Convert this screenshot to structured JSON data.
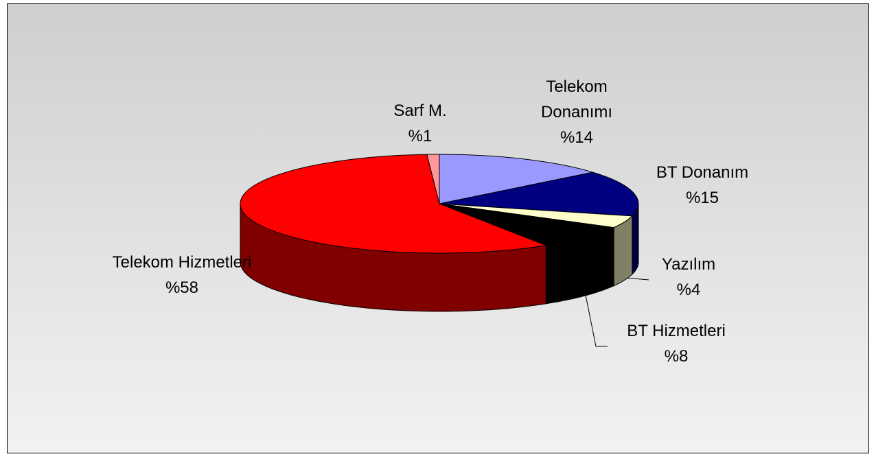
{
  "chart_data": {
    "type": "pie",
    "categories": [
      "Telekom Donanımı",
      "BT Donanım",
      "Yazılım",
      "BT Hizmetleri",
      "Telekom Hizmetleri",
      "Sarf M."
    ],
    "values": [
      14,
      15,
      4,
      8,
      58,
      1
    ],
    "value_labels": [
      "%14",
      "%15",
      "%4",
      "%8",
      "%58",
      "%1"
    ],
    "colors": [
      "#9999ff",
      "#000080",
      "#ffffcc",
      "#000000",
      "#ff0000",
      "#ff9999"
    ],
    "side_colors": [
      "#4d4d80",
      "#000040",
      "#808066",
      "#000000",
      "#800000",
      "#804d4d"
    ]
  }
}
